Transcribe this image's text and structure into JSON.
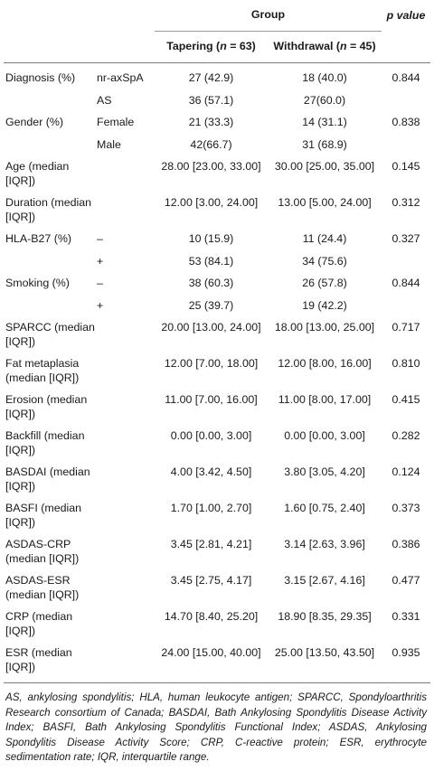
{
  "header": {
    "group": "Group",
    "p_value": "p value",
    "tapering": "Tapering (n = 63)",
    "withdrawal": "Withdrawal (n = 45)"
  },
  "rows": [
    {
      "label": "Diagnosis (%)",
      "sub": "nr-axSpA",
      "tapering": "27 (42.9)",
      "withdrawal": "18 (40.0)",
      "p": "0.844"
    },
    {
      "label": "",
      "sub": "AS",
      "tapering": "36 (57.1)",
      "withdrawal": "27(60.0)",
      "p": ""
    },
    {
      "label": "Gender (%)",
      "sub": "Female",
      "tapering": "21 (33.3)",
      "withdrawal": "14 (31.1)",
      "p": "0.838"
    },
    {
      "label": "",
      "sub": "Male",
      "tapering": "42(66.7)",
      "withdrawal": "31 (68.9)",
      "p": ""
    },
    {
      "label": "Age (median [IQR])",
      "sub": "",
      "tapering": "28.00 [23.00, 33.00]",
      "withdrawal": "30.00 [25.00, 35.00]",
      "p": "0.145"
    },
    {
      "label": "Duration (median [IQR])",
      "sub": "",
      "tapering": "12.00 [3.00, 24.00]",
      "withdrawal": "13.00 [5.00, 24.00]",
      "p": "0.312"
    },
    {
      "label": "HLA-B27 (%)",
      "sub": "–",
      "tapering": "10 (15.9)",
      "withdrawal": "11 (24.4)",
      "p": "0.327"
    },
    {
      "label": "",
      "sub": "+",
      "tapering": "53 (84.1)",
      "withdrawal": "34 (75.6)",
      "p": ""
    },
    {
      "label": "Smoking (%)",
      "sub": "–",
      "tapering": "38 (60.3)",
      "withdrawal": "26 (57.8)",
      "p": "0.844"
    },
    {
      "label": "",
      "sub": "+",
      "tapering": "25 (39.7)",
      "withdrawal": "19 (42.2)",
      "p": ""
    },
    {
      "label": "SPARCC (median [IQR])",
      "sub": "",
      "tapering": "20.00 [13.00, 24.00]",
      "withdrawal": "18.00 [13.00, 25.00]",
      "p": "0.717"
    },
    {
      "label": "Fat metaplasia (median [IQR])",
      "sub": "",
      "tapering": "12.00 [7.00, 18.00]",
      "withdrawal": "12.00 [8.00, 16.00]",
      "p": "0.810"
    },
    {
      "label": "Erosion (median [IQR])",
      "sub": "",
      "tapering": "11.00 [7.00, 16.00]",
      "withdrawal": "11.00 [8.00, 17.00]",
      "p": "0.415"
    },
    {
      "label": "Backfill (median [IQR])",
      "sub": "",
      "tapering": "0.00 [0.00, 3.00]",
      "withdrawal": "0.00 [0.00, 3.00]",
      "p": "0.282"
    },
    {
      "label": "BASDAI (median [IQR])",
      "sub": "",
      "tapering": "4.00 [3.42, 4.50]",
      "withdrawal": "3.80 [3.05, 4.20]",
      "p": "0.124"
    },
    {
      "label": "BASFI (median [IQR])",
      "sub": "",
      "tapering": "1.70 [1.00, 2.70]",
      "withdrawal": "1.60 [0.75, 2.40]",
      "p": "0.373"
    },
    {
      "label": "ASDAS-CRP (median [IQR])",
      "sub": "",
      "tapering": "3.45 [2.81, 4.21]",
      "withdrawal": "3.14 [2.63, 3.96]",
      "p": "0.386"
    },
    {
      "label": "ASDAS-ESR (median [IQR])",
      "sub": "",
      "tapering": "3.45 [2.75, 4.17]",
      "withdrawal": "3.15 [2.67, 4.16]",
      "p": "0.477"
    },
    {
      "label": "CRP (median [IQR])",
      "sub": "",
      "tapering": "14.70 [8.40, 25.20]",
      "withdrawal": "18.90 [8.35, 29.35]",
      "p": "0.331"
    },
    {
      "label": "ESR (median [IQR])",
      "sub": "",
      "tapering": "24.00 [15.00, 40.00]",
      "withdrawal": "25.00 [13.50, 43.50]",
      "p": "0.935"
    }
  ],
  "footnote": "AS, ankylosing spondylitis; HLA, human leukocyte antigen; SPARCC, Spondyloarthritis Research consortium of Canada; BASDAI, Bath Ankylosing Spondylitis Disease Activity Index; BASFI, Bath Ankylosing Spondylitis Functional Index; ASDAS, Ankylosing Spondylitis Disease Activity Score; CRP, C-reactive protein; ESR, erythrocyte sedimentation rate; IQR, interquartile range."
}
